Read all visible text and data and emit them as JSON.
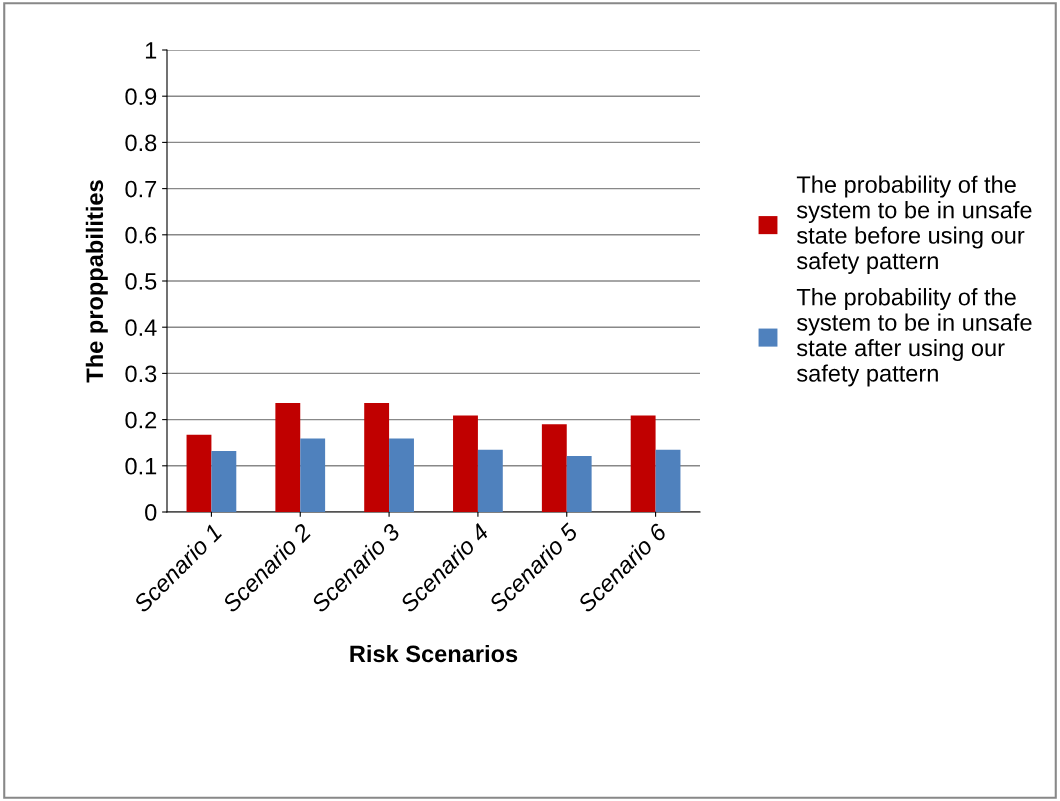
{
  "chart_data": {
    "type": "bar",
    "xlabel": "Risk Scenarios",
    "ylabel": "The proppabilities",
    "categories": [
      "Scenario 1",
      "Scenario 2",
      "Scenario 3",
      "Scenario 4",
      "Scenario 5",
      "Scenario 6"
    ],
    "series": [
      {
        "name": "The probability of the system to be in unsafe state before using our safety pattern",
        "color": "#c00000",
        "values": [
          0.167,
          0.236,
          0.236,
          0.209,
          0.19,
          0.209
        ]
      },
      {
        "name": "The probability of the system to be in unsafe state after using our safety pattern",
        "color": "#4f81bd",
        "values": [
          0.132,
          0.159,
          0.159,
          0.135,
          0.121,
          0.135
        ]
      }
    ],
    "ylim": [
      0,
      1
    ],
    "yticks": [
      0,
      0.1,
      0.2,
      0.3,
      0.4,
      0.5,
      0.6,
      0.7,
      0.8,
      0.9,
      1
    ],
    "grid": "y",
    "legend": "right"
  }
}
